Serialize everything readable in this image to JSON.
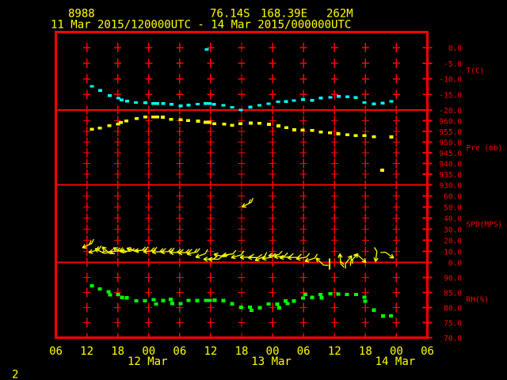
{
  "header": {
    "station_id": "8988",
    "latitude": "76.14S",
    "longitude": "168.39E",
    "elevation": "262M",
    "period": "11 Mar 2015/120000UTC - 14 Mar 2015/000000UTC"
  },
  "page_number": "2",
  "colors": {
    "background": "#000000",
    "axis": "#ff0000",
    "text": "#ffff00",
    "temperature": "#00ffff",
    "pressure": "#ffff00",
    "wind": "#ffff00",
    "humidity": "#00ff00"
  },
  "chart_data": {
    "type": "meteogram",
    "x_axis": {
      "span_hours": 72,
      "hours_per_division": 6,
      "hour_labels": [
        "06",
        "12",
        "18",
        "00",
        "06",
        "12",
        "18",
        "00",
        "06",
        "12",
        "18",
        "00",
        "06"
      ],
      "date_labels": [
        {
          "text": "12 Mar",
          "col": 3
        },
        {
          "text": "13 Mar",
          "col": 7
        },
        {
          "text": "14 Mar",
          "col": 11
        }
      ]
    },
    "panels": [
      {
        "name": "temperature",
        "label": "T(C)",
        "ymin": -20,
        "ymax": 5,
        "ticks": [
          0,
          -5,
          -10,
          -15,
          -20
        ]
      },
      {
        "name": "pressure",
        "label": "Pre (mb)",
        "ymin": 930,
        "ymax": 965,
        "ticks": [
          960,
          955,
          950,
          945,
          940,
          935,
          930
        ]
      },
      {
        "name": "wind_speed",
        "label": "SPD(MPS)",
        "ymin": 0,
        "ymax": 70,
        "ticks": [
          60,
          50,
          40,
          30,
          20,
          10,
          0
        ]
      },
      {
        "name": "humidity",
        "label": "RH(%)",
        "ymin": 70,
        "ymax": 95,
        "ticks": [
          90,
          85,
          80,
          75,
          70
        ]
      }
    ],
    "series": [
      {
        "name": "temperature",
        "panel": "temperature",
        "marker": "square",
        "points": [
          [
            6.99,
            -12.39
          ],
          [
            8.58,
            -13.76
          ],
          [
            10.41,
            -15.38
          ],
          [
            12.13,
            -16.19
          ],
          [
            12.74,
            -16.78
          ],
          [
            13.82,
            -17.11
          ],
          [
            15.51,
            -17.59
          ],
          [
            17.32,
            -17.66
          ],
          [
            18.88,
            -17.92
          ],
          [
            19.65,
            -17.92
          ],
          [
            20.77,
            -17.92
          ],
          [
            22.41,
            -18.17
          ],
          [
            24.18,
            -18.65
          ],
          [
            25.71,
            -18.43
          ],
          [
            27.46,
            -18.1
          ],
          [
            29.01,
            -17.87
          ],
          [
            29.25,
            -0.58
          ],
          [
            29.78,
            -17.87
          ],
          [
            30.63,
            -18.2
          ],
          [
            32.47,
            -18.48
          ],
          [
            34.16,
            -19.11
          ],
          [
            35.85,
            -20.0
          ],
          [
            37.69,
            -19.06
          ],
          [
            39.47,
            -18.48
          ],
          [
            41.22,
            -17.97
          ],
          [
            43.06,
            -17.34
          ],
          [
            44.6,
            -17.28
          ],
          [
            46.13,
            -16.95
          ],
          [
            47.93,
            -16.6
          ],
          [
            49.66,
            -16.9
          ],
          [
            51.35,
            -16.14
          ],
          [
            53.19,
            -15.94
          ],
          [
            54.79,
            -15.66
          ],
          [
            56.49,
            -15.71
          ],
          [
            58.11,
            -16.02
          ],
          [
            59.8,
            -17.59
          ],
          [
            61.64,
            -18.07
          ],
          [
            63.33,
            -17.77
          ],
          [
            65.05,
            -17.21
          ]
        ]
      },
      {
        "name": "pressure",
        "panel": "pressure",
        "marker": "square",
        "points": [
          [
            6.99,
            956.0
          ],
          [
            8.52,
            956.59
          ],
          [
            10.36,
            957.74
          ],
          [
            12.02,
            958.48
          ],
          [
            12.59,
            959.15
          ],
          [
            13.69,
            959.96
          ],
          [
            15.63,
            960.96
          ],
          [
            17.32,
            961.74
          ],
          [
            18.88,
            961.74
          ],
          [
            19.65,
            961.74
          ],
          [
            20.71,
            961.67
          ],
          [
            22.34,
            960.7
          ],
          [
            24.15,
            960.41
          ],
          [
            25.65,
            960.07
          ],
          [
            27.53,
            959.81
          ],
          [
            29.01,
            959.26
          ],
          [
            29.78,
            959.26
          ],
          [
            30.72,
            958.67
          ],
          [
            32.62,
            958.37
          ],
          [
            34.16,
            957.81
          ],
          [
            35.79,
            958.67
          ],
          [
            37.75,
            958.89
          ],
          [
            39.48,
            958.78
          ],
          [
            41.3,
            958.33
          ],
          [
            43.15,
            957.59
          ],
          [
            44.66,
            956.81
          ],
          [
            46.21,
            955.74
          ],
          [
            47.82,
            955.67
          ],
          [
            49.63,
            955.52
          ],
          [
            51.32,
            954.7
          ],
          [
            53.09,
            954.37
          ],
          [
            54.73,
            953.89
          ],
          [
            56.48,
            953.41
          ],
          [
            58.14,
            953.04
          ],
          [
            59.83,
            953.11
          ],
          [
            61.61,
            952.44
          ],
          [
            63.28,
            936.85
          ],
          [
            64.98,
            952.41
          ]
        ]
      },
      {
        "name": "humidity",
        "panel": "humidity",
        "marker": "square",
        "points": [
          [
            6.95,
            87.24
          ],
          [
            8.52,
            86.18
          ],
          [
            10.21,
            85.26
          ],
          [
            10.52,
            84.21
          ],
          [
            12.05,
            84.34
          ],
          [
            12.79,
            83.39
          ],
          [
            13.71,
            83.21
          ],
          [
            15.58,
            82.24
          ],
          [
            17.27,
            82.24
          ],
          [
            18.96,
            82.63
          ],
          [
            19.42,
            81.18
          ],
          [
            20.8,
            82.32
          ],
          [
            22.26,
            82.68
          ],
          [
            22.57,
            81.37
          ],
          [
            24.18,
            81.32
          ],
          [
            25.71,
            82.37
          ],
          [
            27.4,
            82.32
          ],
          [
            29.09,
            82.37
          ],
          [
            29.86,
            82.37
          ],
          [
            30.78,
            82.39
          ],
          [
            32.47,
            82.32
          ],
          [
            34.16,
            81.26
          ],
          [
            35.89,
            80.03
          ],
          [
            37.61,
            80.13
          ],
          [
            37.92,
            79.08
          ],
          [
            39.53,
            79.95
          ],
          [
            41.22,
            81.18
          ],
          [
            42.91,
            81.13
          ],
          [
            43.29,
            79.97
          ],
          [
            44.52,
            82.13
          ],
          [
            44.9,
            81.32
          ],
          [
            46.1,
            82.16
          ],
          [
            47.9,
            83.16
          ],
          [
            48.36,
            84.34
          ],
          [
            49.66,
            83.34
          ],
          [
            51.28,
            84.34
          ],
          [
            51.51,
            83.21
          ],
          [
            53.19,
            84.61
          ],
          [
            54.73,
            84.47
          ],
          [
            56.42,
            84.34
          ],
          [
            58.17,
            84.34
          ],
          [
            59.8,
            83.42
          ],
          [
            59.95,
            82.11
          ],
          [
            61.64,
            79.16
          ],
          [
            63.37,
            77.18
          ],
          [
            64.97,
            77.24
          ]
        ]
      },
      {
        "name": "wind",
        "panel": "wind_speed",
        "marker": "barb",
        "barbs": [
          [
            5.14,
            13.21,
            205
          ],
          [
            6.37,
            8.93,
            196
          ],
          [
            7.6,
            12.5,
            152
          ],
          [
            8.98,
            13.93,
            140
          ],
          [
            10.36,
            9.64,
            185
          ],
          [
            11.13,
            13.21,
            152
          ],
          [
            12.51,
            10.36,
            178
          ],
          [
            13.74,
            12.86,
            160
          ],
          [
            15.28,
            10.36,
            185
          ],
          [
            16.96,
            9.64,
            186
          ],
          [
            18.65,
            9.29,
            183
          ],
          [
            20.34,
            9.29,
            185
          ],
          [
            22.03,
            8.93,
            181
          ],
          [
            23.72,
            8.57,
            183
          ],
          [
            25.41,
            7.5,
            192
          ],
          [
            27.1,
            4.64,
            201
          ],
          [
            28.63,
            2.86,
            182
          ],
          [
            29.55,
            2.86,
            180
          ],
          [
            30.63,
            7.5,
            165
          ],
          [
            32.32,
            6.43,
            188
          ],
          [
            34.0,
            4.29,
            196
          ],
          [
            35.69,
            4.64,
            181
          ],
          [
            37.23,
            4.43,
            180
          ],
          [
            38.61,
            1.79,
            203
          ],
          [
            39.99,
            3.21,
            190
          ],
          [
            41.22,
            6.07,
            186
          ],
          [
            42.29,
            5.0,
            184
          ],
          [
            43.37,
            4.29,
            185
          ],
          [
            44.9,
            4.29,
            182
          ],
          [
            46.59,
            3.21,
            190
          ],
          [
            48.28,
            1.07,
            198
          ],
          [
            50.43,
            3.93,
            137
          ],
          [
            53.04,
            -6.43,
            270
          ],
          [
            55.04,
            7.86,
            95
          ],
          [
            57.34,
            6.07,
            52
          ],
          [
            58.57,
            7.86,
            45
          ],
          [
            60.1,
            0.0,
            318
          ],
          [
            61.94,
            0.71,
            262
          ],
          [
            65.48,
            3.93,
            325
          ],
          [
            36.08,
            50.0,
            207
          ]
        ]
      }
    ]
  }
}
